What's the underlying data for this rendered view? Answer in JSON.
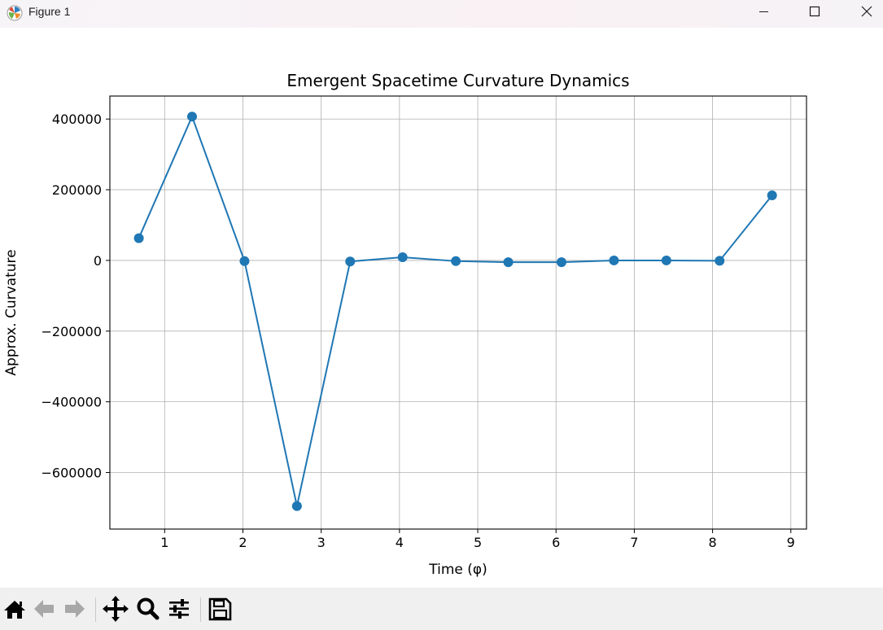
{
  "window": {
    "title": "Figure 1",
    "icon": "matplotlib-icon",
    "controls": [
      "minimize-icon",
      "maximize-icon",
      "close-icon"
    ]
  },
  "toolbar": {
    "tools": [
      "home-icon",
      "back-arrow-icon",
      "forward-arrow-icon",
      "pan-move-icon",
      "zoom-magnifier-icon",
      "configure-subplots-icon",
      "save-disk-icon"
    ]
  },
  "colors": {
    "series": "#1f77b4",
    "grid": "#b0b0b0",
    "toolbar_bg": "#f0f0f0"
  },
  "chart_data": {
    "type": "line",
    "title": "Emergent Spacetime Curvature Dynamics",
    "xlabel": "Time (φ)",
    "ylabel": "Approx. Curvature",
    "xlim": [
      0.3,
      9.2
    ],
    "ylim": [
      -760000,
      465000
    ],
    "xticks": [
      1,
      2,
      3,
      4,
      5,
      6,
      7,
      8,
      9
    ],
    "yticks": [
      400000,
      200000,
      0,
      -200000,
      -400000,
      -600000
    ],
    "ytick_labels": [
      "400000",
      "200000",
      "0",
      "−200000",
      "−400000",
      "−600000"
    ],
    "grid": true,
    "markers": true,
    "series": [
      {
        "x": [
          0.67,
          1.35,
          2.02,
          2.69,
          3.37,
          4.04,
          4.72,
          5.39,
          6.07,
          6.74,
          7.41,
          8.09,
          8.76
        ],
        "y": [
          63000,
          407000,
          -2000,
          -695000,
          -3000,
          9000,
          -2000,
          -5000,
          -5000,
          0,
          0,
          -1000,
          184000
        ]
      }
    ]
  }
}
